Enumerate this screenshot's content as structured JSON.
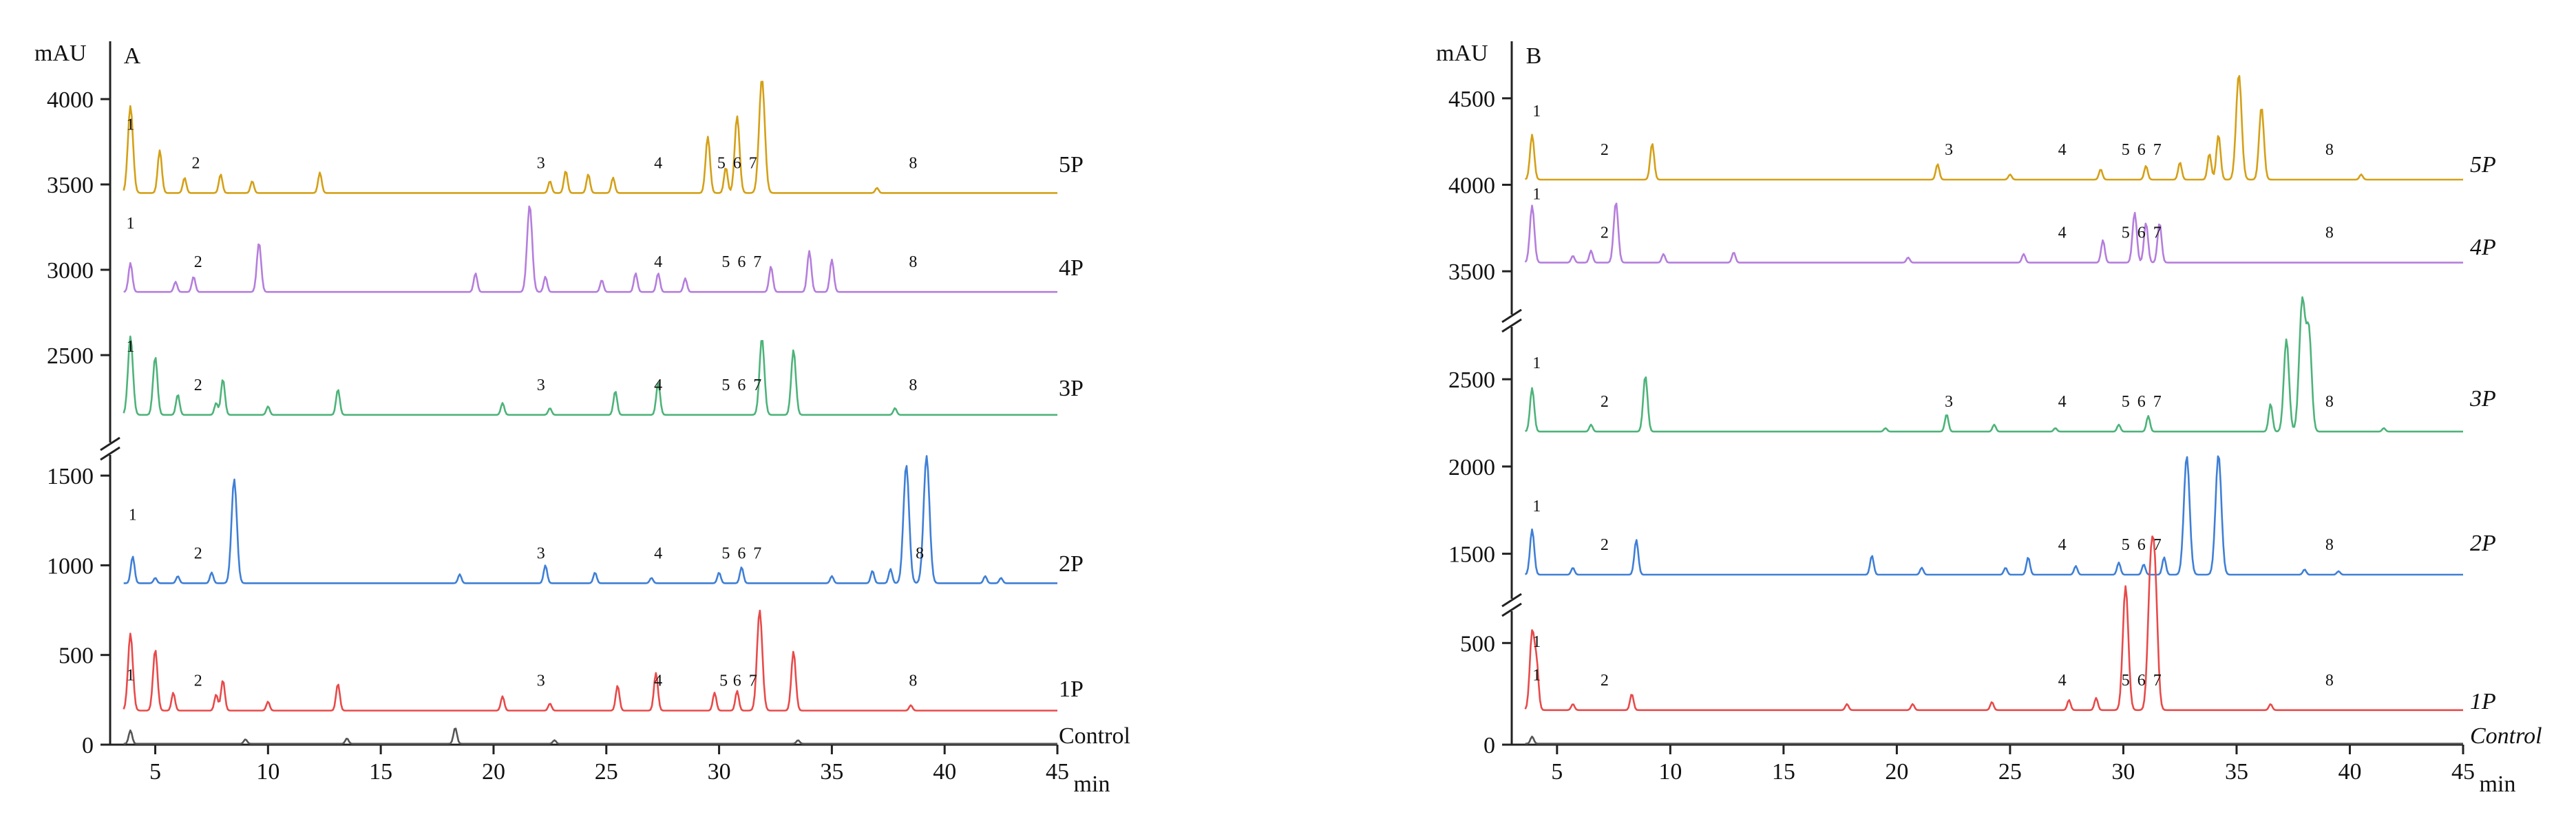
{
  "chart_data": [
    {
      "type": "line",
      "panel": "A",
      "ylabel": "mAU",
      "xlabel": "min",
      "xlim": [
        3,
        45
      ],
      "x_ticks": [
        5,
        10,
        15,
        20,
        25,
        30,
        35,
        40,
        45
      ],
      "y_ticks_lower": [
        0,
        500,
        1000,
        1500
      ],
      "y_ticks_upper": [
        2500,
        3000,
        3500,
        4000
      ],
      "axis_break": "between 1500 and 2500 mAU",
      "series": [
        {
          "name": "5P",
          "color": "#d4a017",
          "baseline": 3450,
          "peaks": [
            [
              3.9,
              3960
            ],
            [
              5.2,
              3700
            ],
            [
              6.3,
              3540
            ],
            [
              7.9,
              3560
            ],
            [
              9.3,
              3520
            ],
            [
              12.3,
              3570
            ],
            [
              22.5,
              3520
            ],
            [
              23.2,
              3580
            ],
            [
              24.2,
              3560
            ],
            [
              25.3,
              3540
            ],
            [
              29.5,
              3780
            ],
            [
              30.3,
              3600
            ],
            [
              30.8,
              3900
            ],
            [
              31.9,
              4120
            ],
            [
              37.0,
              3480
            ]
          ],
          "peak_labels": [
            {
              "label": "1",
              "x": 3.9
            },
            {
              "label": "2",
              "x": 6.8
            },
            {
              "label": "3",
              "x": 22.1
            },
            {
              "label": "4",
              "x": 27.3
            },
            {
              "label": "5",
              "x": 30.1
            },
            {
              "label": "6",
              "x": 30.8
            },
            {
              "label": "7",
              "x": 31.5
            },
            {
              "label": "8",
              "x": 38.6
            }
          ]
        },
        {
          "name": "4P",
          "color": "#b57edc",
          "baseline": 2870,
          "peaks": [
            [
              3.9,
              3040
            ],
            [
              5.9,
              2930
            ],
            [
              6.7,
              2960
            ],
            [
              9.6,
              3160
            ],
            [
              19.2,
              2980
            ],
            [
              21.6,
              3380
            ],
            [
              22.3,
              2960
            ],
            [
              24.8,
              2940
            ],
            [
              26.3,
              2980
            ],
            [
              27.3,
              2980
            ],
            [
              28.5,
              2950
            ],
            [
              32.3,
              3020
            ],
            [
              34.0,
              3110
            ],
            [
              35.0,
              3060
            ]
          ],
          "peak_labels": [
            {
              "label": "1",
              "x": 3.9
            },
            {
              "label": "2",
              "x": 6.9
            },
            {
              "label": "4",
              "x": 27.3
            },
            {
              "label": "5",
              "x": 30.3
            },
            {
              "label": "6",
              "x": 31.0
            },
            {
              "label": "7",
              "x": 31.7
            },
            {
              "label": "8",
              "x": 38.6
            }
          ]
        },
        {
          "name": "3P",
          "color": "#4db37a",
          "baseline": 2150,
          "peaks": [
            [
              3.9,
              2610
            ],
            [
              5.0,
              2490
            ],
            [
              6.0,
              2270
            ],
            [
              7.7,
              2220
            ],
            [
              8.0,
              2360
            ],
            [
              10.0,
              2200
            ],
            [
              13.1,
              2300
            ],
            [
              20.4,
              2220
            ],
            [
              22.5,
              2190
            ],
            [
              25.4,
              2290
            ],
            [
              27.3,
              2340
            ],
            [
              31.9,
              2600
            ],
            [
              33.3,
              2530
            ],
            [
              37.8,
              2190
            ]
          ],
          "peak_labels": [
            {
              "label": "1",
              "x": 3.9
            },
            {
              "label": "2",
              "x": 6.9
            },
            {
              "label": "3",
              "x": 22.1
            },
            {
              "label": "4",
              "x": 27.3
            },
            {
              "label": "5",
              "x": 30.3
            },
            {
              "label": "6",
              "x": 31.0
            },
            {
              "label": "7",
              "x": 31.7
            },
            {
              "label": "8",
              "x": 38.6
            }
          ]
        },
        {
          "name": "2P",
          "color": "#3f7fd6",
          "baseline": 900,
          "peaks": [
            [
              4.0,
              1050
            ],
            [
              5.0,
              930
            ],
            [
              6.0,
              940
            ],
            [
              7.5,
              960
            ],
            [
              8.5,
              1480
            ],
            [
              18.5,
              950
            ],
            [
              22.3,
              1000
            ],
            [
              24.5,
              960
            ],
            [
              27.0,
              930
            ],
            [
              30.0,
              960
            ],
            [
              31.0,
              990
            ],
            [
              35.0,
              940
            ],
            [
              36.8,
              970
            ],
            [
              37.6,
              980
            ],
            [
              38.3,
              1560
            ],
            [
              39.2,
              1610
            ],
            [
              41.8,
              940
            ],
            [
              42.5,
              930
            ]
          ],
          "peak_labels": [
            {
              "label": "1",
              "x": 4.0
            },
            {
              "label": "2",
              "x": 6.9
            },
            {
              "label": "3",
              "x": 22.1
            },
            {
              "label": "4",
              "x": 27.3
            },
            {
              "label": "5",
              "x": 30.3
            },
            {
              "label": "6",
              "x": 31.0
            },
            {
              "label": "7",
              "x": 31.7
            },
            {
              "label": "8",
              "x": 38.9
            }
          ]
        },
        {
          "name": "1P",
          "color": "#e84a4a",
          "baseline": 190,
          "peaks": [
            [
              3.9,
              620
            ],
            [
              5.0,
              530
            ],
            [
              5.8,
              290
            ],
            [
              7.7,
              280
            ],
            [
              8.0,
              360
            ],
            [
              10.0,
              240
            ],
            [
              13.1,
              340
            ],
            [
              20.4,
              270
            ],
            [
              22.5,
              230
            ],
            [
              25.5,
              330
            ],
            [
              27.2,
              400
            ],
            [
              29.8,
              290
            ],
            [
              30.8,
              300
            ],
            [
              31.8,
              750
            ],
            [
              33.3,
              520
            ],
            [
              38.5,
              220
            ]
          ],
          "peak_labels": [
            {
              "label": "2",
              "x": 6.9
            },
            {
              "label": "3",
              "x": 22.1
            },
            {
              "label": "4",
              "x": 27.3
            },
            {
              "label": "5",
              "x": 30.2
            },
            {
              "label": "6",
              "x": 30.8
            },
            {
              "label": "7",
              "x": 31.5
            },
            {
              "label": "8",
              "x": 38.6
            }
          ]
        },
        {
          "name": "Control",
          "color": "#555555",
          "baseline": 5,
          "peaks": [
            [
              3.9,
              80
            ],
            [
              9.0,
              30
            ],
            [
              13.5,
              35
            ],
            [
              18.3,
              95
            ],
            [
              22.7,
              25
            ],
            [
              33.5,
              25
            ]
          ],
          "peak_labels": [
            {
              "label": "1",
              "x": 3.9
            }
          ]
        }
      ]
    },
    {
      "type": "line",
      "panel": "B",
      "ylabel": "mAU",
      "xlabel": "min",
      "xlim": [
        3,
        45
      ],
      "x_ticks": [
        5,
        10,
        15,
        20,
        25,
        30,
        35,
        40,
        45
      ],
      "y_ticks_lower": [
        0,
        500
      ],
      "y_ticks_middle": [
        1500,
        2000,
        2500
      ],
      "y_ticks_upper": [
        3500,
        4000,
        4500
      ],
      "axis_break": "between 500 and 1300 mAU, and between 2800 and 3300 mAU",
      "series": [
        {
          "name": "5P",
          "color": "#d4a017",
          "baseline": 4030,
          "peaks": [
            [
              3.9,
              4290
            ],
            [
              9.2,
              4240
            ],
            [
              21.8,
              4120
            ],
            [
              25.0,
              4060
            ],
            [
              29.0,
              4090
            ],
            [
              31.0,
              4110
            ],
            [
              32.5,
              4130
            ],
            [
              33.8,
              4180
            ],
            [
              34.2,
              4290
            ],
            [
              35.1,
              4640
            ],
            [
              36.1,
              4450
            ],
            [
              40.5,
              4060
            ]
          ],
          "peak_labels": [
            {
              "label": "1",
              "x": 4.1
            },
            {
              "label": "2",
              "x": 7.1
            },
            {
              "label": "3",
              "x": 22.3
            },
            {
              "label": "4",
              "x": 27.3
            },
            {
              "label": "5",
              "x": 30.1
            },
            {
              "label": "6",
              "x": 30.8
            },
            {
              "label": "7",
              "x": 31.5
            },
            {
              "label": "8",
              "x": 39.1
            }
          ]
        },
        {
          "name": "4P",
          "color": "#b57edc",
          "baseline": 3550,
          "peaks": [
            [
              3.9,
              3880
            ],
            [
              5.7,
              3590
            ],
            [
              6.5,
              3620
            ],
            [
              7.6,
              3900
            ],
            [
              9.7,
              3600
            ],
            [
              12.8,
              3610
            ],
            [
              20.5,
              3580
            ],
            [
              25.6,
              3600
            ],
            [
              29.1,
              3680
            ],
            [
              30.5,
              3840
            ],
            [
              31.0,
              3780
            ],
            [
              31.6,
              3780
            ]
          ],
          "peak_labels": [
            {
              "label": "1",
              "x": 4.1
            },
            {
              "label": "2",
              "x": 7.1
            },
            {
              "label": "4",
              "x": 27.3
            },
            {
              "label": "5",
              "x": 30.1
            },
            {
              "label": "6",
              "x": 30.8
            },
            {
              "label": "7",
              "x": 31.5
            },
            {
              "label": "8",
              "x": 39.1
            }
          ]
        },
        {
          "name": "3P",
          "color": "#4db37a",
          "baseline": 2200,
          "peaks": [
            [
              3.9,
              2450
            ],
            [
              6.5,
              2240
            ],
            [
              8.9,
              2520
            ],
            [
              19.5,
              2220
            ],
            [
              22.2,
              2300
            ],
            [
              24.3,
              2240
            ],
            [
              27.0,
              2220
            ],
            [
              29.8,
              2240
            ],
            [
              31.1,
              2290
            ],
            [
              36.5,
              2360
            ],
            [
              37.2,
              2730
            ],
            [
              37.9,
              2950
            ],
            [
              38.2,
              2750
            ],
            [
              41.5,
              2220
            ]
          ],
          "peak_labels": [
            {
              "label": "1",
              "x": 4.1
            },
            {
              "label": "2",
              "x": 7.1
            },
            {
              "label": "3",
              "x": 22.3
            },
            {
              "label": "4",
              "x": 27.3
            },
            {
              "label": "5",
              "x": 30.1
            },
            {
              "label": "6",
              "x": 30.8
            },
            {
              "label": "7",
              "x": 31.5
            },
            {
              "label": "8",
              "x": 39.1
            }
          ]
        },
        {
          "name": "2P",
          "color": "#3f7fd6",
          "baseline": 1380,
          "peaks": [
            [
              3.9,
              1640
            ],
            [
              5.7,
              1420
            ],
            [
              8.5,
              1580
            ],
            [
              18.9,
              1490
            ],
            [
              21.1,
              1420
            ],
            [
              24.8,
              1420
            ],
            [
              25.8,
              1480
            ],
            [
              27.9,
              1430
            ],
            [
              29.8,
              1450
            ],
            [
              30.9,
              1440
            ],
            [
              31.8,
              1480
            ],
            [
              32.8,
              2060
            ],
            [
              34.2,
              2070
            ],
            [
              38.0,
              1410
            ],
            [
              39.5,
              1400
            ]
          ],
          "peak_labels": [
            {
              "label": "1",
              "x": 4.1
            },
            {
              "label": "2",
              "x": 7.1
            },
            {
              "label": "4",
              "x": 27.3
            },
            {
              "label": "5",
              "x": 30.1
            },
            {
              "label": "6",
              "x": 30.8
            },
            {
              "label": "7",
              "x": 31.5
            },
            {
              "label": "8",
              "x": 39.1
            }
          ]
        },
        {
          "name": "1P",
          "color": "#e84a4a",
          "baseline": 170,
          "peaks": [
            [
              3.9,
              550
            ],
            [
              4.1,
              380
            ],
            [
              5.7,
              200
            ],
            [
              8.3,
              250
            ],
            [
              17.8,
              200
            ],
            [
              20.7,
              200
            ],
            [
              24.2,
              210
            ],
            [
              27.6,
              220
            ],
            [
              28.8,
              230
            ],
            [
              30.1,
              780
            ],
            [
              31.2,
              790
            ],
            [
              31.4,
              760
            ],
            [
              36.5,
              200
            ]
          ],
          "peak_labels": [
            {
              "label": "1",
              "x": 4.1
            },
            {
              "label": "2",
              "x": 7.1
            },
            {
              "label": "4",
              "x": 27.3
            },
            {
              "label": "5",
              "x": 30.1
            },
            {
              "label": "6",
              "x": 30.8
            },
            {
              "label": "7",
              "x": 31.5
            },
            {
              "label": "8",
              "x": 39.1
            }
          ]
        },
        {
          "name": "Control",
          "color": "#555555",
          "baseline": 5,
          "peaks": [
            [
              3.9,
              40
            ]
          ],
          "peak_labels": [
            {
              "label": "1",
              "x": 4.1
            }
          ]
        }
      ]
    }
  ]
}
